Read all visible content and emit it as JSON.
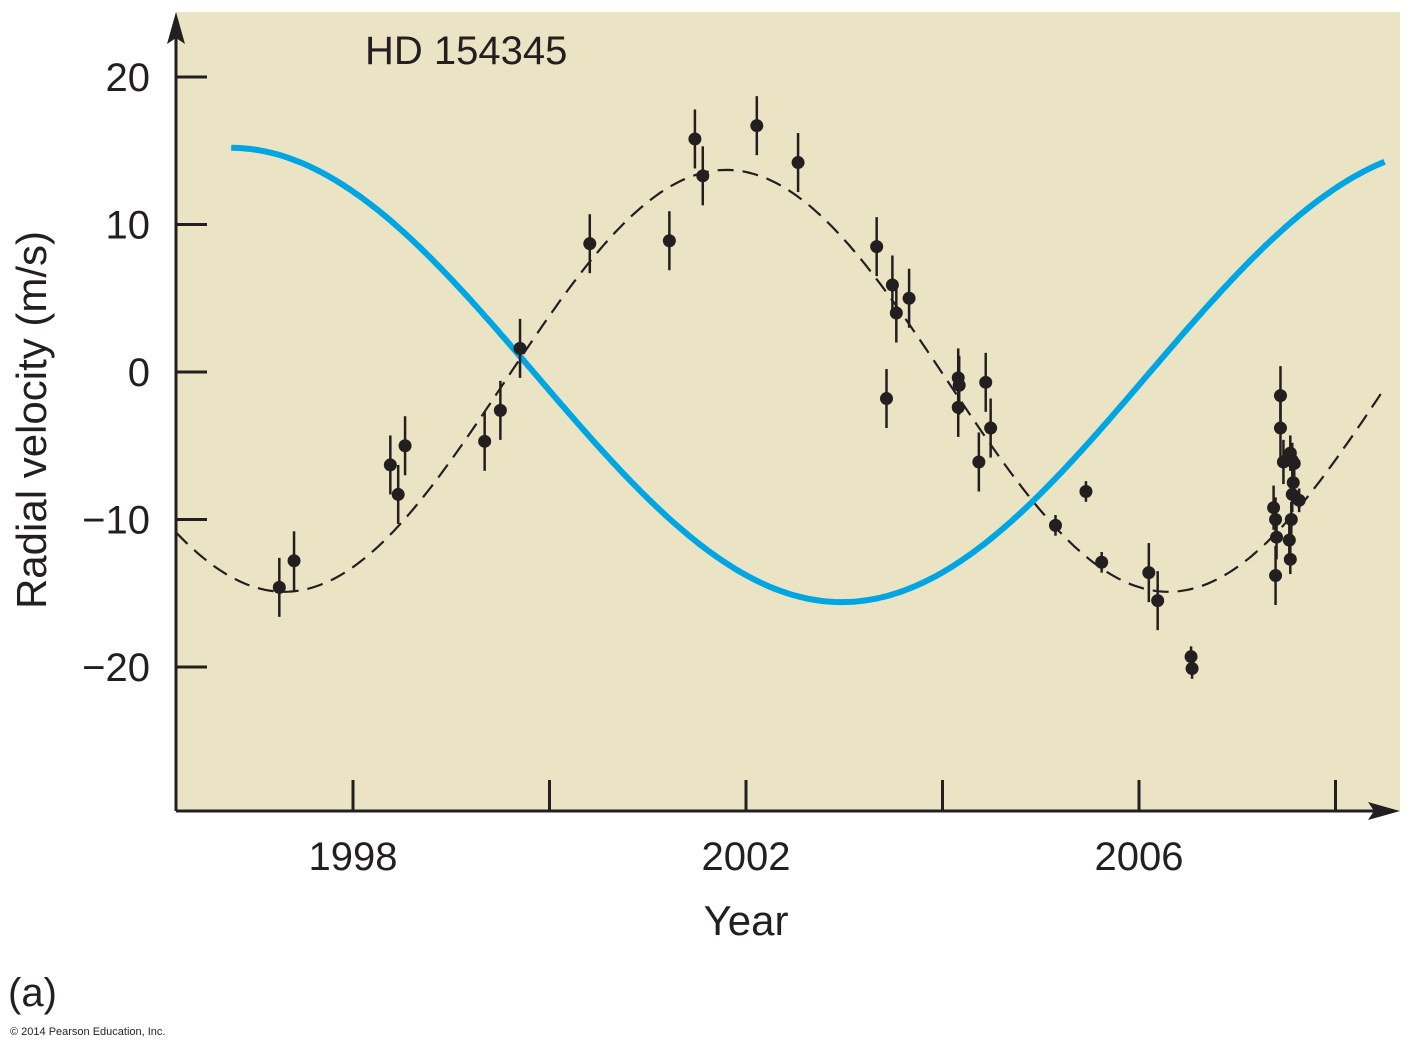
{
  "chart_data": {
    "type": "scatter",
    "title": "HD 154345",
    "xlabel": "Year",
    "ylabel": "Radial velocity (m/s)",
    "xlim": [
      1996.2,
      2008.6
    ],
    "ylim": [
      -29.7,
      24
    ],
    "x_ticks": [
      1998,
      2000,
      2002,
      2004,
      2006,
      2008
    ],
    "x_tick_labels": [
      "1998",
      "",
      "2002",
      "",
      "2006",
      ""
    ],
    "y_ticks": [
      20,
      10,
      0,
      -10,
      -20
    ],
    "y_tick_labels": [
      "20",
      "10",
      "0",
      "−10",
      "−20"
    ],
    "grid": false,
    "panel_label": "(a)",
    "copyright": "© 2014 Pearson Education, Inc.",
    "colors": {
      "background": "#ebe4c4",
      "blue_curve": "#00a5e3",
      "points": "#231f20"
    },
    "series": [
      {
        "name": "observations",
        "points": [
          {
            "x": 1997.25,
            "y": -14.6,
            "err": 2.0
          },
          {
            "x": 1997.4,
            "y": -12.8,
            "err": 2.0
          },
          {
            "x": 1998.38,
            "y": -6.3,
            "err": 2.0
          },
          {
            "x": 1998.46,
            "y": -8.3,
            "err": 2.0
          },
          {
            "x": 1998.53,
            "y": -5.0,
            "err": 2.0
          },
          {
            "x": 1999.34,
            "y": -4.7,
            "err": 2.0
          },
          {
            "x": 1999.5,
            "y": -2.6,
            "err": 2.0
          },
          {
            "x": 1999.7,
            "y": 1.6,
            "err": 2.0
          },
          {
            "x": 2000.41,
            "y": 8.7,
            "err": 2.0
          },
          {
            "x": 2001.22,
            "y": 8.9,
            "err": 2.0
          },
          {
            "x": 2001.48,
            "y": 15.8,
            "err": 2.0
          },
          {
            "x": 2001.56,
            "y": 13.3,
            "err": 2.0
          },
          {
            "x": 2002.11,
            "y": 16.7,
            "err": 2.0
          },
          {
            "x": 2002.53,
            "y": 14.2,
            "err": 2.0
          },
          {
            "x": 2003.33,
            "y": 8.5,
            "err": 2.0
          },
          {
            "x": 2003.49,
            "y": 5.9,
            "err": 2.0
          },
          {
            "x": 2003.53,
            "y": 4.0,
            "err": 2.0
          },
          {
            "x": 2003.66,
            "y": 5.0,
            "err": 2.0
          },
          {
            "x": 2003.43,
            "y": -1.8,
            "err": 2.0
          },
          {
            "x": 2004.16,
            "y": -0.4,
            "err": 2.0
          },
          {
            "x": 2004.17,
            "y": -0.9,
            "err": 2.0
          },
          {
            "x": 2004.16,
            "y": -2.4,
            "err": 2.0
          },
          {
            "x": 2004.44,
            "y": -0.7,
            "err": 2.0
          },
          {
            "x": 2004.49,
            "y": -3.8,
            "err": 2.0
          },
          {
            "x": 2004.37,
            "y": -6.1,
            "err": 2.0
          },
          {
            "x": 2005.15,
            "y": -10.4,
            "err": 0.7
          },
          {
            "x": 2005.46,
            "y": -8.1,
            "err": 0.7
          },
          {
            "x": 2005.62,
            "y": -12.9,
            "err": 0.7
          },
          {
            "x": 2006.1,
            "y": -13.6,
            "err": 2.0
          },
          {
            "x": 2006.19,
            "y": -15.5,
            "err": 2.0
          },
          {
            "x": 2006.53,
            "y": -19.3,
            "err": 0.7
          },
          {
            "x": 2006.54,
            "y": -20.1,
            "err": 0.7
          },
          {
            "x": 2007.37,
            "y": -9.2,
            "err": 1.5
          },
          {
            "x": 2007.39,
            "y": -10.0,
            "err": 1.5
          },
          {
            "x": 2007.4,
            "y": -11.2,
            "err": 1.5
          },
          {
            "x": 2007.39,
            "y": -13.8,
            "err": 2.0
          },
          {
            "x": 2007.44,
            "y": -1.6,
            "err": 2.0
          },
          {
            "x": 2007.44,
            "y": -3.8,
            "err": 2.0
          },
          {
            "x": 2007.47,
            "y": -6.1,
            "err": 1.5
          },
          {
            "x": 2007.54,
            "y": -5.5,
            "err": 1.2
          },
          {
            "x": 2007.56,
            "y": -6.0,
            "err": 1.2
          },
          {
            "x": 2007.57,
            "y": -7.5,
            "err": 1.2
          },
          {
            "x": 2007.56,
            "y": -8.3,
            "err": 1.2
          },
          {
            "x": 2007.55,
            "y": -10.0,
            "err": 1.2
          },
          {
            "x": 2007.53,
            "y": -11.4,
            "err": 1.2
          },
          {
            "x": 2007.54,
            "y": -12.7,
            "err": 1.0
          },
          {
            "x": 2007.63,
            "y": -8.7,
            "err": 0.8
          },
          {
            "x": 2007.58,
            "y": -6.2,
            "err": 1.0
          }
        ]
      },
      {
        "name": "planet fit (dashed)",
        "style": "dashed",
        "function": "offset - amplitude*cos(2*pi*(t - t_min)/period)",
        "amplitude": 14.3,
        "period": 9.0,
        "t_min": 1997.3,
        "offset": -0.6,
        "t_range": [
          1996.2,
          2008.5
        ]
      },
      {
        "name": "star response (blue)",
        "style": "solid",
        "function": "offset + amplitude*cos(2*pi*(t - t_max)/period)",
        "amplitude": 15.4,
        "period": 12.45,
        "t_max": 1996.75,
        "offset": -0.2,
        "t_range": [
          1996.76,
          2008.5
        ]
      }
    ]
  }
}
